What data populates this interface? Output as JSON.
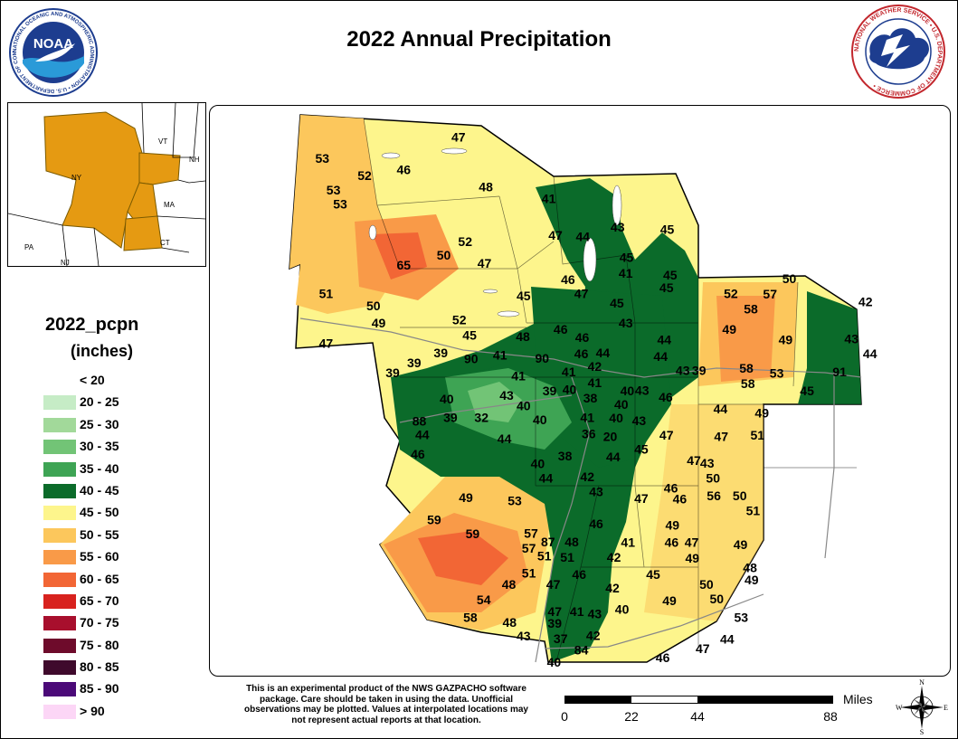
{
  "title": "2022 Annual Precipitation",
  "logos": {
    "noaa": {
      "center_text": "NOAA",
      "ring_text": "NATIONAL OCEANIC AND ATMOSPHERIC ADMINISTRATION • U.S. DEPARTMENT OF COMMERCE •"
    },
    "nws": {
      "ring_text": "NATIONAL WEATHER SERVICE • U.S. DEPARTMENT OF COMMERCE •"
    }
  },
  "inset": {
    "states": [
      "NY",
      "VT",
      "NH",
      "MA",
      "CT",
      "PA",
      "NJ"
    ]
  },
  "legend": {
    "title": "2022_pcpn",
    "units": "(inches)",
    "items": [
      {
        "label": "< 20",
        "color": "#ffffff"
      },
      {
        "label": "20 - 25",
        "color": "#c6ecc6"
      },
      {
        "label": "25 - 30",
        "color": "#a2d99a"
      },
      {
        "label": "30 - 35",
        "color": "#72c476"
      },
      {
        "label": "35 - 40",
        "color": "#3ea454"
      },
      {
        "label": "40 - 45",
        "color": "#0b6b2a"
      },
      {
        "label": "45 - 50",
        "color": "#fdf58c"
      },
      {
        "label": "50 - 55",
        "color": "#fcc75c"
      },
      {
        "label": "55 - 60",
        "color": "#f99a48"
      },
      {
        "label": "60 - 65",
        "color": "#f26635"
      },
      {
        "label": "65 - 70",
        "color": "#d8221e"
      },
      {
        "label": "70 - 75",
        "color": "#a80f2d"
      },
      {
        "label": "75 - 80",
        "color": "#6e0b2b"
      },
      {
        "label": "80 - 85",
        "color": "#3f0a2c"
      },
      {
        "label": "85 - 90",
        "color": "#4b0a78"
      },
      {
        "label": "> 90",
        "color": "#fcd6f6"
      }
    ]
  },
  "disclaimer": "This is an experimental product of the NWS GAZPACHO software package. Care should be taken in using the data. Unofficial observations may be plotted. Values at interpolated locations may not represent actual reports at that location.",
  "scale": {
    "unit": "Miles",
    "ticks": [
      "0",
      "22",
      "44",
      "88"
    ]
  },
  "compass": {
    "n": "N",
    "s": "S",
    "e": "E",
    "w": "W"
  },
  "interstates": [
    "90",
    "90",
    "88",
    "87",
    "87",
    "84",
    "91"
  ],
  "observations": [
    {
      "v": "47",
      "lon": 0.336,
      "lat": 0.055
    },
    {
      "v": "53",
      "lon": 0.152,
      "lat": 0.092
    },
    {
      "v": "52",
      "lon": 0.209,
      "lat": 0.122
    },
    {
      "v": "46",
      "lon": 0.262,
      "lat": 0.112
    },
    {
      "v": "53",
      "lon": 0.167,
      "lat": 0.148
    },
    {
      "v": "53",
      "lon": 0.176,
      "lat": 0.172
    },
    {
      "v": "48",
      "lon": 0.373,
      "lat": 0.142
    },
    {
      "v": "41",
      "lon": 0.458,
      "lat": 0.163
    },
    {
      "v": "47",
      "lon": 0.467,
      "lat": 0.227
    },
    {
      "v": "44",
      "lon": 0.504,
      "lat": 0.229
    },
    {
      "v": "43",
      "lon": 0.551,
      "lat": 0.213
    },
    {
      "v": "45",
      "lon": 0.618,
      "lat": 0.217
    },
    {
      "v": "52",
      "lon": 0.345,
      "lat": 0.238
    },
    {
      "v": "50",
      "lon": 0.316,
      "lat": 0.262
    },
    {
      "v": "65",
      "lon": 0.262,
      "lat": 0.279
    },
    {
      "v": "47",
      "lon": 0.371,
      "lat": 0.276
    },
    {
      "v": "45",
      "lon": 0.563,
      "lat": 0.266
    },
    {
      "v": "41",
      "lon": 0.562,
      "lat": 0.294
    },
    {
      "v": "45",
      "lon": 0.622,
      "lat": 0.297
    },
    {
      "v": "45",
      "lon": 0.617,
      "lat": 0.319
    },
    {
      "v": "50",
      "lon": 0.783,
      "lat": 0.303
    },
    {
      "v": "52",
      "lon": 0.704,
      "lat": 0.329
    },
    {
      "v": "57",
      "lon": 0.757,
      "lat": 0.33
    },
    {
      "v": "58",
      "lon": 0.731,
      "lat": 0.356
    },
    {
      "v": "42",
      "lon": 0.886,
      "lat": 0.344
    },
    {
      "v": "51",
      "lon": 0.157,
      "lat": 0.329
    },
    {
      "v": "50",
      "lon": 0.221,
      "lat": 0.351
    },
    {
      "v": "46",
      "lon": 0.484,
      "lat": 0.305
    },
    {
      "v": "47",
      "lon": 0.502,
      "lat": 0.329
    },
    {
      "v": "45",
      "lon": 0.424,
      "lat": 0.333
    },
    {
      "v": "45",
      "lon": 0.55,
      "lat": 0.346
    },
    {
      "v": "49",
      "lon": 0.228,
      "lat": 0.381
    },
    {
      "v": "52",
      "lon": 0.337,
      "lat": 0.375
    },
    {
      "v": "45",
      "lon": 0.351,
      "lat": 0.402
    },
    {
      "v": "48",
      "lon": 0.423,
      "lat": 0.405
    },
    {
      "v": "46",
      "lon": 0.474,
      "lat": 0.392
    },
    {
      "v": "46",
      "lon": 0.503,
      "lat": 0.406
    },
    {
      "v": "43",
      "lon": 0.562,
      "lat": 0.381
    },
    {
      "v": "44",
      "lon": 0.614,
      "lat": 0.41
    },
    {
      "v": "49",
      "lon": 0.702,
      "lat": 0.392
    },
    {
      "v": "49",
      "lon": 0.778,
      "lat": 0.41
    },
    {
      "v": "43",
      "lon": 0.867,
      "lat": 0.409
    },
    {
      "v": "44",
      "lon": 0.892,
      "lat": 0.435
    },
    {
      "v": "47",
      "lon": 0.157,
      "lat": 0.417
    },
    {
      "v": "39",
      "lon": 0.312,
      "lat": 0.433
    },
    {
      "v": "41",
      "lon": 0.392,
      "lat": 0.437
    },
    {
      "v": "46",
      "lon": 0.502,
      "lat": 0.435
    },
    {
      "v": "44",
      "lon": 0.531,
      "lat": 0.433
    },
    {
      "v": "44",
      "lon": 0.609,
      "lat": 0.44
    },
    {
      "v": "39",
      "lon": 0.276,
      "lat": 0.451
    },
    {
      "v": "42",
      "lon": 0.52,
      "lat": 0.457
    },
    {
      "v": "43",
      "lon": 0.639,
      "lat": 0.464
    },
    {
      "v": "39",
      "lon": 0.661,
      "lat": 0.464
    },
    {
      "v": "58",
      "lon": 0.725,
      "lat": 0.46
    },
    {
      "v": "53",
      "lon": 0.766,
      "lat": 0.469
    },
    {
      "v": "39",
      "lon": 0.247,
      "lat": 0.468
    },
    {
      "v": "41",
      "lon": 0.417,
      "lat": 0.474
    },
    {
      "v": "41",
      "lon": 0.485,
      "lat": 0.467
    },
    {
      "v": "58",
      "lon": 0.727,
      "lat": 0.487
    },
    {
      "v": "39",
      "lon": 0.459,
      "lat": 0.5
    },
    {
      "v": "40",
      "lon": 0.486,
      "lat": 0.498
    },
    {
      "v": "41",
      "lon": 0.52,
      "lat": 0.486
    },
    {
      "v": "40",
      "lon": 0.564,
      "lat": 0.5
    },
    {
      "v": "43",
      "lon": 0.584,
      "lat": 0.499
    },
    {
      "v": "43",
      "lon": 0.401,
      "lat": 0.508
    },
    {
      "v": "38",
      "lon": 0.514,
      "lat": 0.513
    },
    {
      "v": "40",
      "lon": 0.556,
      "lat": 0.524
    },
    {
      "v": "46",
      "lon": 0.616,
      "lat": 0.511
    },
    {
      "v": "45",
      "lon": 0.807,
      "lat": 0.5
    },
    {
      "v": "40",
      "lon": 0.32,
      "lat": 0.514
    },
    {
      "v": "40",
      "lon": 0.424,
      "lat": 0.526
    },
    {
      "v": "44",
      "lon": 0.69,
      "lat": 0.532
    },
    {
      "v": "49",
      "lon": 0.746,
      "lat": 0.539
    },
    {
      "v": "39",
      "lon": 0.325,
      "lat": 0.547
    },
    {
      "v": "32",
      "lon": 0.367,
      "lat": 0.547
    },
    {
      "v": "40",
      "lon": 0.446,
      "lat": 0.551
    },
    {
      "v": "41",
      "lon": 0.51,
      "lat": 0.547
    },
    {
      "v": "40",
      "lon": 0.549,
      "lat": 0.548
    },
    {
      "v": "43",
      "lon": 0.58,
      "lat": 0.552
    },
    {
      "v": "44",
      "lon": 0.287,
      "lat": 0.577
    },
    {
      "v": "47",
      "lon": 0.617,
      "lat": 0.578
    },
    {
      "v": "47",
      "lon": 0.691,
      "lat": 0.58
    },
    {
      "v": "51",
      "lon": 0.74,
      "lat": 0.578
    },
    {
      "v": "44",
      "lon": 0.398,
      "lat": 0.584
    },
    {
      "v": "36",
      "lon": 0.512,
      "lat": 0.575
    },
    {
      "v": "20",
      "lon": 0.541,
      "lat": 0.58
    },
    {
      "v": "45",
      "lon": 0.583,
      "lat": 0.602
    },
    {
      "v": "46",
      "lon": 0.281,
      "lat": 0.611
    },
    {
      "v": "38",
      "lon": 0.48,
      "lat": 0.614
    },
    {
      "v": "44",
      "lon": 0.545,
      "lat": 0.616
    },
    {
      "v": "47",
      "lon": 0.654,
      "lat": 0.622
    },
    {
      "v": "43",
      "lon": 0.672,
      "lat": 0.627
    },
    {
      "v": "40",
      "lon": 0.443,
      "lat": 0.628
    },
    {
      "v": "44",
      "lon": 0.454,
      "lat": 0.653
    },
    {
      "v": "42",
      "lon": 0.51,
      "lat": 0.651
    },
    {
      "v": "50",
      "lon": 0.68,
      "lat": 0.653
    },
    {
      "v": "46",
      "lon": 0.623,
      "lat": 0.671
    },
    {
      "v": "56",
      "lon": 0.681,
      "lat": 0.684
    },
    {
      "v": "50",
      "lon": 0.716,
      "lat": 0.684
    },
    {
      "v": "43",
      "lon": 0.522,
      "lat": 0.677
    },
    {
      "v": "46",
      "lon": 0.635,
      "lat": 0.69
    },
    {
      "v": "49",
      "lon": 0.346,
      "lat": 0.687
    },
    {
      "v": "53",
      "lon": 0.412,
      "lat": 0.693
    },
    {
      "v": "47",
      "lon": 0.583,
      "lat": 0.689
    },
    {
      "v": "51",
      "lon": 0.734,
      "lat": 0.71
    },
    {
      "v": "59",
      "lon": 0.303,
      "lat": 0.726
    },
    {
      "v": "46",
      "lon": 0.522,
      "lat": 0.733
    },
    {
      "v": "49",
      "lon": 0.625,
      "lat": 0.736
    },
    {
      "v": "59",
      "lon": 0.355,
      "lat": 0.751
    },
    {
      "v": "57",
      "lon": 0.434,
      "lat": 0.75
    },
    {
      "v": "87",
      "lon": 0.457,
      "lat": 0.765
    },
    {
      "v": "48",
      "lon": 0.489,
      "lat": 0.765
    },
    {
      "v": "41",
      "lon": 0.565,
      "lat": 0.766
    },
    {
      "v": "46",
      "lon": 0.624,
      "lat": 0.766
    },
    {
      "v": "47",
      "lon": 0.651,
      "lat": 0.766
    },
    {
      "v": "49",
      "lon": 0.717,
      "lat": 0.77
    },
    {
      "v": "57",
      "lon": 0.431,
      "lat": 0.776
    },
    {
      "v": "51",
      "lon": 0.452,
      "lat": 0.79
    },
    {
      "v": "51",
      "lon": 0.483,
      "lat": 0.792
    },
    {
      "v": "42",
      "lon": 0.546,
      "lat": 0.792
    },
    {
      "v": "49",
      "lon": 0.652,
      "lat": 0.794
    },
    {
      "v": "48",
      "lon": 0.73,
      "lat": 0.81
    },
    {
      "v": "51",
      "lon": 0.431,
      "lat": 0.82
    },
    {
      "v": "46",
      "lon": 0.499,
      "lat": 0.822
    },
    {
      "v": "45",
      "lon": 0.599,
      "lat": 0.822
    },
    {
      "v": "49",
      "lon": 0.732,
      "lat": 0.832
    },
    {
      "v": "48",
      "lon": 0.404,
      "lat": 0.84
    },
    {
      "v": "47",
      "lon": 0.464,
      "lat": 0.84
    },
    {
      "v": "50",
      "lon": 0.671,
      "lat": 0.84
    },
    {
      "v": "42",
      "lon": 0.544,
      "lat": 0.846
    },
    {
      "v": "54",
      "lon": 0.37,
      "lat": 0.867
    },
    {
      "v": "49",
      "lon": 0.621,
      "lat": 0.868
    },
    {
      "v": "50",
      "lon": 0.685,
      "lat": 0.865
    },
    {
      "v": "47",
      "lon": 0.466,
      "lat": 0.887
    },
    {
      "v": "41",
      "lon": 0.496,
      "lat": 0.887
    },
    {
      "v": "43",
      "lon": 0.52,
      "lat": 0.891
    },
    {
      "v": "40",
      "lon": 0.557,
      "lat": 0.883
    },
    {
      "v": "58",
      "lon": 0.352,
      "lat": 0.898
    },
    {
      "v": "48",
      "lon": 0.405,
      "lat": 0.906
    },
    {
      "v": "39",
      "lon": 0.466,
      "lat": 0.908
    },
    {
      "v": "53",
      "lon": 0.718,
      "lat": 0.898
    },
    {
      "v": "42",
      "lon": 0.518,
      "lat": 0.929
    },
    {
      "v": "43",
      "lon": 0.424,
      "lat": 0.93
    },
    {
      "v": "37",
      "lon": 0.474,
      "lat": 0.935
    },
    {
      "v": "44",
      "lon": 0.699,
      "lat": 0.936
    },
    {
      "v": "47",
      "lon": 0.666,
      "lat": 0.952
    },
    {
      "v": "84",
      "lon": 0.502,
      "lat": 0.955
    },
    {
      "v": "46",
      "lon": 0.612,
      "lat": 0.968
    },
    {
      "v": "40",
      "lon": 0.465,
      "lat": 0.976
    },
    {
      "v": "90",
      "lon": 0.353,
      "lat": 0.444
    },
    {
      "v": "90",
      "lon": 0.449,
      "lat": 0.443
    },
    {
      "v": "88",
      "lon": 0.283,
      "lat": 0.553
    },
    {
      "v": "91",
      "lon": 0.851,
      "lat": 0.467
    }
  ]
}
